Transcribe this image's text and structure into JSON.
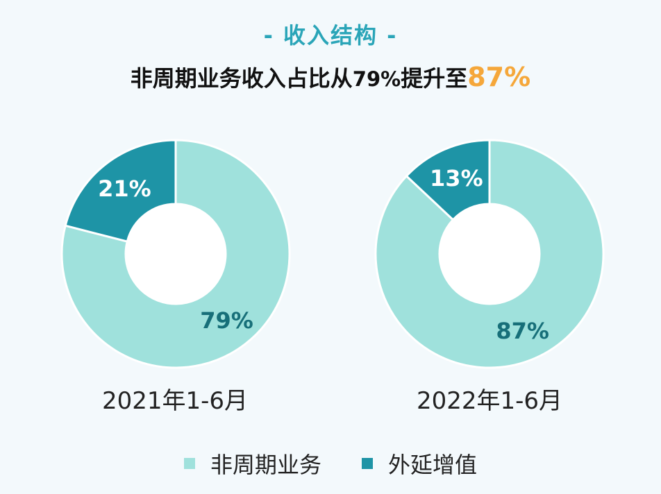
{
  "header": {
    "title": "- 收入结构 -",
    "subtitle_prefix": "非周期业务收入占比从",
    "subtitle_from": "79%",
    "subtitle_mid": "提升至",
    "subtitle_to": "87%"
  },
  "colors": {
    "non_cyclical": "#9fe1dc",
    "extension": "#1e94a6",
    "label_dark": "#176f79",
    "label_light": "#ffffff",
    "highlight": "#f5a73a"
  },
  "chart_data": [
    {
      "type": "pie",
      "period": "2021年1-6月",
      "slices": [
        {
          "name": "非周期业务",
          "value": 79,
          "label": "79%"
        },
        {
          "name": "外延增值",
          "value": 21,
          "label": "21%"
        }
      ]
    },
    {
      "type": "pie",
      "period": "2022年1-6月",
      "slices": [
        {
          "name": "非周期业务",
          "value": 87,
          "label": "87%"
        },
        {
          "name": "外延增值",
          "value": 13,
          "label": "13%"
        }
      ]
    }
  ],
  "legend": [
    {
      "name": "非周期业务",
      "color": "#9fe1dc"
    },
    {
      "name": "外延增值",
      "color": "#1e94a6"
    }
  ]
}
